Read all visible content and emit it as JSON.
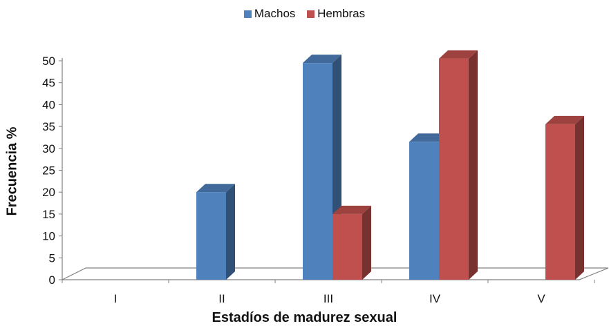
{
  "chart_data": {
    "type": "bar",
    "categories": [
      "I",
      "II",
      "III",
      "IV",
      "V"
    ],
    "series": [
      {
        "name": "Machos",
        "values": [
          0,
          20,
          49.5,
          31.5,
          0
        ],
        "color": "#4F81BD"
      },
      {
        "name": "Hembras",
        "values": [
          0,
          0,
          15,
          50.5,
          35.5
        ],
        "color": "#C0504D"
      }
    ],
    "xlabel": "Estadíos de madurez sexual",
    "ylabel": "Frecuencia %",
    "yticks": [
      "0",
      "5",
      "10",
      "15",
      "20",
      "25",
      "30",
      "35",
      "40",
      "45",
      "50"
    ],
    "ylim": [
      0,
      50
    ],
    "legend_position": "top-center",
    "grid": false
  }
}
